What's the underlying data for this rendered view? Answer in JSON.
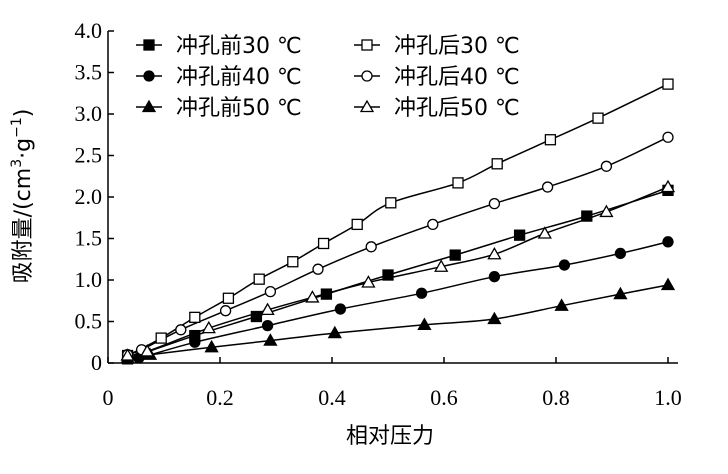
{
  "chart_data": {
    "type": "line",
    "xlabel": "相对压力",
    "ylabel": "吸附量/(cm",
    "ylabel_sup1": "3",
    "ylabel_mid": "·g",
    "ylabel_sup2": "−1",
    "ylabel_end": ")",
    "xlim": [
      0,
      1.0
    ],
    "ylim": [
      0,
      4.0
    ],
    "x_ticks": [
      "0",
      "0.2",
      "0.4",
      "0.6",
      "0.8",
      "1.0"
    ],
    "y_ticks": [
      "0",
      "0.5",
      "1.0",
      "1.5",
      "2.0",
      "2.5",
      "3.0",
      "3.5",
      "4.0"
    ],
    "legend_position": "top-left",
    "grid": false,
    "series": [
      {
        "name": "冲孔前30 ℃",
        "marker": "square",
        "filled": true,
        "x": [
          0.035,
          0.155,
          0.265,
          0.39,
          0.5,
          0.62,
          0.735,
          0.855,
          1.0
        ],
        "y": [
          0.05,
          0.33,
          0.56,
          0.83,
          1.06,
          1.3,
          1.54,
          1.77,
          2.08
        ]
      },
      {
        "name": "冲孔后30 ℃",
        "marker": "square",
        "filled": false,
        "x": [
          0.035,
          0.095,
          0.155,
          0.215,
          0.27,
          0.33,
          0.385,
          0.445,
          0.505,
          0.625,
          0.695,
          0.79,
          0.875,
          1.0
        ],
        "y": [
          0.09,
          0.3,
          0.55,
          0.78,
          1.01,
          1.22,
          1.44,
          1.67,
          1.93,
          2.17,
          2.4,
          2.69,
          2.95,
          3.36
        ]
      },
      {
        "name": "冲孔前40 ℃",
        "marker": "circle",
        "filled": true,
        "x": [
          0.035,
          0.055,
          0.155,
          0.285,
          0.415,
          0.56,
          0.69,
          0.815,
          0.915,
          1.0
        ],
        "y": [
          0.05,
          0.06,
          0.25,
          0.45,
          0.65,
          0.84,
          1.04,
          1.18,
          1.32,
          1.46
        ]
      },
      {
        "name": "冲孔后40 ℃",
        "marker": "circle",
        "filled": false,
        "x": [
          0.035,
          0.06,
          0.13,
          0.21,
          0.29,
          0.375,
          0.47,
          0.58,
          0.69,
          0.785,
          0.89,
          1.0
        ],
        "y": [
          0.1,
          0.16,
          0.4,
          0.63,
          0.86,
          1.13,
          1.4,
          1.67,
          1.92,
          2.12,
          2.37,
          2.72
        ]
      },
      {
        "name": "冲孔前50 ℃",
        "marker": "triangle",
        "filled": true,
        "x": [
          0.035,
          0.075,
          0.185,
          0.29,
          0.405,
          0.565,
          0.69,
          0.81,
          0.915,
          1.0
        ],
        "y": [
          0.06,
          0.1,
          0.19,
          0.27,
          0.36,
          0.46,
          0.53,
          0.69,
          0.83,
          0.94
        ]
      },
      {
        "name": "冲孔后50 ℃",
        "marker": "triangle",
        "filled": false,
        "x": [
          0.035,
          0.07,
          0.18,
          0.285,
          0.365,
          0.465,
          0.595,
          0.69,
          0.78,
          0.89,
          1.0
        ],
        "y": [
          0.09,
          0.14,
          0.42,
          0.64,
          0.79,
          0.97,
          1.16,
          1.31,
          1.56,
          1.82,
          2.12
        ]
      }
    ]
  }
}
